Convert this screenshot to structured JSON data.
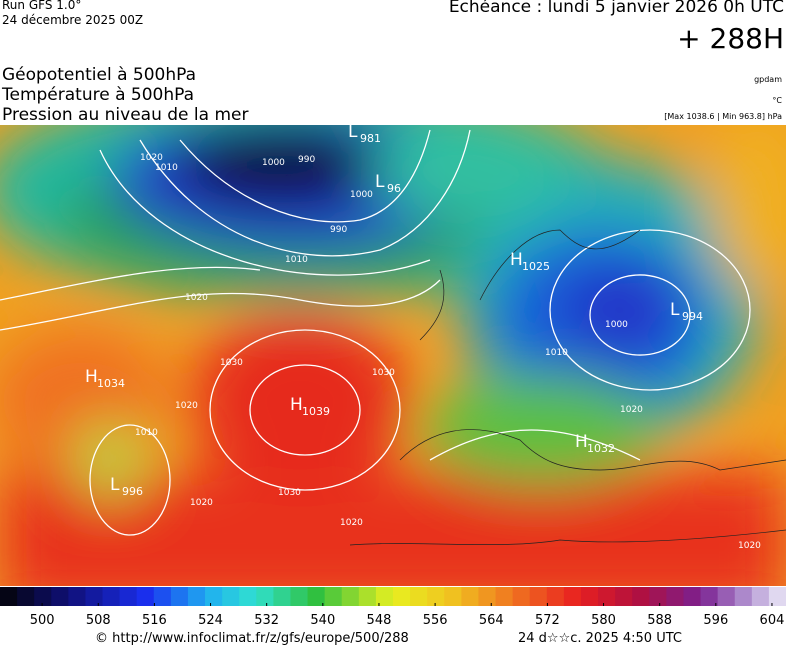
{
  "header": {
    "run": "Run GFS 1.0°",
    "date": "24 décembre 2025 00Z",
    "forecast": "Echéance : lundi 5 janvier 2026 0h UTC",
    "step": "+ 288H"
  },
  "fields": [
    "Géopotentiel à 500hPa",
    "Température à 500hPa",
    "Pression au niveau de la mer"
  ],
  "units": {
    "geopotential": "gpdam",
    "temperature": "°C",
    "pressure": "[Max 1038.6 | Min 963.8] hPa"
  },
  "centers": [
    {
      "kind": "L",
      "value": 981
    },
    {
      "kind": "L",
      "value": 96
    },
    {
      "kind": "H",
      "value": 1025
    },
    {
      "kind": "L",
      "value": 994
    },
    {
      "kind": "H",
      "value": 1034
    },
    {
      "kind": "H",
      "value": 1039
    },
    {
      "kind": "H",
      "value": 1032
    },
    {
      "kind": "L",
      "value": 996
    }
  ],
  "isobar_labels": [
    1020,
    1010,
    1000,
    990,
    1000,
    990,
    1010,
    1020,
    1030,
    1030,
    1020,
    1010,
    1030,
    1020,
    1020,
    1000,
    1010,
    1020,
    1020
  ],
  "colorbar": {
    "range": [
      494,
      606
    ],
    "ticks": [
      500,
      508,
      516,
      524,
      532,
      540,
      548,
      556,
      564,
      572,
      580,
      588,
      596,
      604
    ]
  },
  "footer": {
    "source": "© http://www.infoclimat.fr/z/gfs/europe/500/288",
    "time": "24 d☆☆c. 2025  4:50 UTC"
  }
}
